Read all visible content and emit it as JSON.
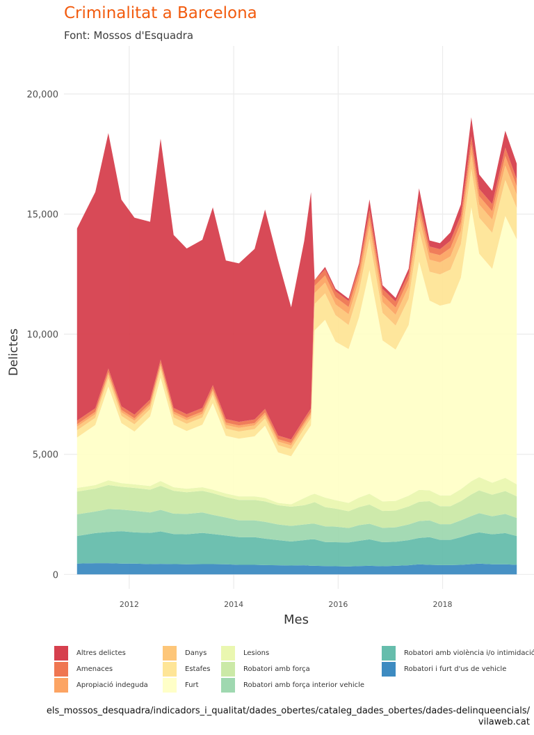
{
  "header": {
    "title": "Criminalitat a Barcelona",
    "subtitle": "Font: Mossos d'Esquadra"
  },
  "caption": {
    "line1": "els_mossos_desquadra/indicadors_i_qualitat/dades_obertes/cataleg_dades_obertes/dades-delinqueencials/",
    "line2": "vilaweb.cat"
  },
  "chart_data": {
    "type": "area",
    "stacked": true,
    "title": "Criminalitat a Barcelona",
    "subtitle": "Font: Mossos d'Esquadra",
    "xlabel": "Mes",
    "ylabel": "Delictes",
    "xlim": [
      2010.75,
      2019.75
    ],
    "ylim": [
      -600,
      22000
    ],
    "x_ticks": [
      2012,
      2014,
      2016,
      2018
    ],
    "x_tick_labels": [
      "2012",
      "2014",
      "2016",
      "2018"
    ],
    "y_ticks": [
      0,
      5000,
      10000,
      15000,
      20000
    ],
    "y_tick_labels": [
      "0",
      "5,000",
      "10,000",
      "15,000",
      "20,000"
    ],
    "grid": true,
    "legend_position": "bottom",
    "x": [
      2011.0,
      2011.35,
      2011.6,
      2011.85,
      2012.1,
      2012.4,
      2012.6,
      2012.85,
      2013.1,
      2013.4,
      2013.6,
      2013.85,
      2014.1,
      2014.4,
      2014.6,
      2014.85,
      2015.1,
      2015.35,
      2015.48,
      2015.55,
      2015.75,
      2015.95,
      2016.2,
      2016.4,
      2016.6,
      2016.85,
      2017.1,
      2017.35,
      2017.55,
      2017.75,
      2017.95,
      2018.15,
      2018.35,
      2018.55,
      2018.7,
      2018.95,
      2019.2,
      2019.42
    ],
    "series": [
      {
        "name": "Robatori i furt d'us de vehicle",
        "color": "#3d8bc1",
        "values": [
          450,
          470,
          470,
          450,
          450,
          430,
          440,
          430,
          420,
          430,
          430,
          420,
          400,
          400,
          390,
          380,
          370,
          380,
          360,
          360,
          350,
          340,
          330,
          350,
          360,
          340,
          360,
          380,
          420,
          400,
          390,
          390,
          400,
          430,
          450,
          420,
          420,
          400
        ]
      },
      {
        "name": "Robatori amb violència i/o intimidació",
        "color": "#66bdac",
        "values": [
          1150,
          1250,
          1300,
          1350,
          1300,
          1300,
          1350,
          1250,
          1250,
          1300,
          1250,
          1200,
          1150,
          1150,
          1100,
          1050,
          1000,
          1050,
          1100,
          1100,
          1000,
          1000,
          1000,
          1050,
          1100,
          1000,
          1000,
          1050,
          1100,
          1150,
          1050,
          1050,
          1150,
          1250,
          1300,
          1250,
          1300,
          1200
        ]
      },
      {
        "name": "Robatori amb força interior vehicle",
        "color": "#9fd8b0",
        "values": [
          900,
          900,
          950,
          900,
          900,
          850,
          900,
          850,
          850,
          850,
          800,
          750,
          700,
          700,
          700,
          650,
          650,
          650,
          650,
          650,
          650,
          650,
          600,
          650,
          650,
          600,
          600,
          650,
          700,
          700,
          650,
          650,
          700,
          750,
          800,
          750,
          800,
          750
        ]
      },
      {
        "name": "Robatori amb força",
        "color": "#cbe9a7",
        "values": [
          950,
          950,
          1000,
          950,
          950,
          950,
          1000,
          950,
          900,
          900,
          900,
          850,
          850,
          850,
          850,
          800,
          800,
          800,
          850,
          900,
          800,
          750,
          700,
          750,
          800,
          700,
          700,
          750,
          800,
          800,
          750,
          750,
          800,
          900,
          950,
          900,
          950,
          900
        ]
      },
      {
        "name": "Lesions",
        "color": "#eaf7b0",
        "values": [
          150,
          150,
          200,
          150,
          150,
          150,
          200,
          150,
          150,
          150,
          150,
          150,
          150,
          150,
          150,
          100,
          100,
          300,
          350,
          350,
          400,
          350,
          350,
          400,
          450,
          400,
          400,
          450,
          500,
          450,
          450,
          450,
          500,
          550,
          550,
          500,
          550,
          500
        ]
      },
      {
        "name": "Furt",
        "color": "#ffffc8",
        "values": [
          2100,
          2500,
          3900,
          2500,
          2200,
          2900,
          4300,
          2600,
          2400,
          2600,
          3600,
          2400,
          2400,
          2500,
          3000,
          2100,
          2000,
          2600,
          2900,
          6800,
          7400,
          6600,
          6400,
          7500,
          9300,
          6700,
          6300,
          7100,
          9500,
          7900,
          7900,
          8000,
          8800,
          11400,
          9300,
          8900,
          10900,
          10200
        ]
      },
      {
        "name": "Estafes",
        "color": "#fee597",
        "values": [
          300,
          300,
          350,
          300,
          300,
          300,
          350,
          300,
          300,
          300,
          350,
          300,
          300,
          300,
          300,
          300,
          300,
          300,
          300,
          1100,
          1100,
          1100,
          1000,
          1100,
          1300,
          1150,
          1000,
          1100,
          1300,
          1200,
          1300,
          1400,
          1400,
          1600,
          1500,
          1500,
          1500,
          1300
        ]
      },
      {
        "name": "Danys",
        "color": "#fdc679",
        "values": [
          150,
          150,
          150,
          150,
          150,
          150,
          150,
          150,
          150,
          150,
          150,
          150,
          150,
          150,
          150,
          150,
          150,
          150,
          150,
          450,
          450,
          450,
          450,
          450,
          550,
          450,
          450,
          500,
          550,
          500,
          500,
          550,
          550,
          600,
          550,
          550,
          600,
          550
        ]
      },
      {
        "name": "Apropiació indeguda",
        "color": "#fca463",
        "values": [
          100,
          100,
          100,
          100,
          100,
          100,
          100,
          100,
          100,
          100,
          100,
          100,
          100,
          100,
          100,
          100,
          100,
          100,
          100,
          300,
          300,
          300,
          300,
          300,
          350,
          300,
          300,
          300,
          350,
          300,
          300,
          350,
          350,
          400,
          350,
          350,
          400,
          350
        ]
      },
      {
        "name": "Amenaces",
        "color": "#ef7651",
        "values": [
          150,
          150,
          150,
          150,
          150,
          150,
          150,
          150,
          150,
          150,
          150,
          150,
          150,
          150,
          150,
          150,
          150,
          150,
          150,
          250,
          250,
          250,
          250,
          250,
          300,
          250,
          250,
          250,
          300,
          250,
          250,
          300,
          300,
          350,
          300,
          300,
          350,
          300
        ]
      },
      {
        "name": "Altres delictes",
        "color": "#d6404e",
        "values": [
          8000,
          9000,
          9800,
          8600,
          8200,
          7400,
          9200,
          7200,
          6900,
          7000,
          7400,
          6600,
          6600,
          7100,
          8300,
          7300,
          5500,
          7400,
          9000,
          0,
          100,
          100,
          100,
          150,
          450,
          150,
          150,
          200,
          550,
          250,
          250,
          350,
          450,
          800,
          600,
          550,
          700,
          650
        ]
      }
    ]
  }
}
